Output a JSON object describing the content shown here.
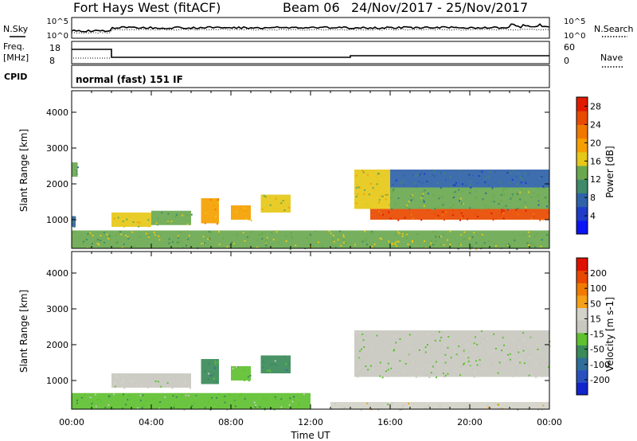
{
  "header": {
    "site": "Fort Hays West (fitACF)",
    "beam": "Beam 06",
    "dates": "24/Nov/2017 - 25/Nov/2017",
    "mode": "normal (fast) 151 IF"
  },
  "strips": {
    "nsky_label": "N.Sky",
    "nsky_ticks": [
      "10^5",
      "10^0"
    ],
    "nsearch_label": "N.Search",
    "nsearch_ticks": [
      "10^5",
      "10^0"
    ],
    "freq_label": "Freq.",
    "freq_unit": "[MHz]",
    "freq_ticks": [
      "18",
      "8"
    ],
    "nave_label": "Nave",
    "nave_ticks": [
      "60",
      "0"
    ],
    "cpid_label": "CPID"
  },
  "colors": {
    "power_scale": [
      "#0b14f5",
      "#1e3cc8",
      "#2f62a8",
      "#3f8a6a",
      "#6aa84f",
      "#e6c818",
      "#f5a000",
      "#f07800",
      "#e84a00",
      "#e01b00"
    ],
    "velocity_scale": [
      "#1224cc",
      "#2a50c0",
      "#2f6e9a",
      "#3a8a5a",
      "#5fc030",
      "#c8c8c0",
      "#d2d2c8",
      "#f4a018",
      "#f07a00",
      "#e84800",
      "#e01000"
    ]
  },
  "chart_data": [
    {
      "type": "heatmap",
      "name": "power",
      "ylabel": "Slant Range [km]",
      "y_ticks": [
        "1000",
        "2000",
        "3000",
        "4000"
      ],
      "ylim": [
        200,
        4600
      ],
      "xlim": [
        0,
        24
      ],
      "x_ticks": [
        "00:00",
        "04:00",
        "08:00",
        "12:00",
        "16:00",
        "20:00",
        "00:00"
      ],
      "colorbar": {
        "label": "Power [dB]",
        "ticks": [
          "4",
          "8",
          "12",
          "16",
          "20",
          "24",
          "28"
        ],
        "range": [
          0,
          30
        ]
      },
      "regions": [
        {
          "t0": 0.0,
          "t1": 0.3,
          "r0": 2200,
          "r1": 2600,
          "value": 12
        },
        {
          "t0": 0.0,
          "t1": 0.2,
          "r0": 800,
          "r1": 1100,
          "value": 8
        },
        {
          "t0": 2.0,
          "t1": 4.0,
          "r0": 800,
          "r1": 1200,
          "value": 16
        },
        {
          "t0": 4.0,
          "t1": 6.0,
          "r0": 850,
          "r1": 1250,
          "value": 14
        },
        {
          "t0": 6.5,
          "t1": 7.4,
          "r0": 900,
          "r1": 1600,
          "value": 20
        },
        {
          "t0": 8.0,
          "t1": 9.0,
          "r0": 1000,
          "r1": 1400,
          "value": 18
        },
        {
          "t0": 9.5,
          "t1": 11.0,
          "r0": 1200,
          "r1": 1700,
          "value": 16
        },
        {
          "t0": 0.0,
          "t1": 24.0,
          "r0": 200,
          "r1": 700,
          "value": 14
        },
        {
          "t0": 14.2,
          "t1": 16.0,
          "r0": 1300,
          "r1": 2400,
          "value": 16
        },
        {
          "t0": 15.0,
          "t1": 24.0,
          "r0": 1000,
          "r1": 1300,
          "value": 26
        },
        {
          "t0": 16.0,
          "t1": 24.0,
          "r0": 1300,
          "r1": 1900,
          "value": 12
        },
        {
          "t0": 16.0,
          "t1": 24.0,
          "r0": 1900,
          "r1": 2400,
          "value": 8
        }
      ]
    },
    {
      "type": "heatmap",
      "name": "velocity",
      "ylabel": "Slant Range [km]",
      "xlabel": "Time UT",
      "y_ticks": [
        "1000",
        "2000",
        "3000",
        "4000"
      ],
      "ylim": [
        200,
        4600
      ],
      "xlim": [
        0,
        24
      ],
      "x_ticks": [
        "00:00",
        "04:00",
        "08:00",
        "12:00",
        "16:00",
        "20:00",
        "00:00"
      ],
      "colorbar": {
        "label": "Velocity [m s-1]",
        "ticks": [
          "200",
          "100",
          "50",
          "15",
          "-15",
          "-50",
          "-100",
          "-200"
        ],
        "range": [
          -250,
          250
        ]
      },
      "regions": [
        {
          "t0": 2.0,
          "t1": 6.0,
          "r0": 800,
          "r1": 1200,
          "value": 0
        },
        {
          "t0": 6.5,
          "t1": 7.4,
          "r0": 900,
          "r1": 1600,
          "value": -80
        },
        {
          "t0": 8.0,
          "t1": 9.0,
          "r0": 1000,
          "r1": 1400,
          "value": -60
        },
        {
          "t0": 9.5,
          "t1": 11.0,
          "r0": 1200,
          "r1": 1700,
          "value": -70
        },
        {
          "t0": 0.0,
          "t1": 12.0,
          "r0": 200,
          "r1": 650,
          "value": -60
        },
        {
          "t0": 14.2,
          "t1": 24.0,
          "r0": 1100,
          "r1": 2400,
          "value": 0
        },
        {
          "t0": 13.0,
          "t1": 24.0,
          "r0": 200,
          "r1": 400,
          "value": 30
        }
      ]
    }
  ]
}
